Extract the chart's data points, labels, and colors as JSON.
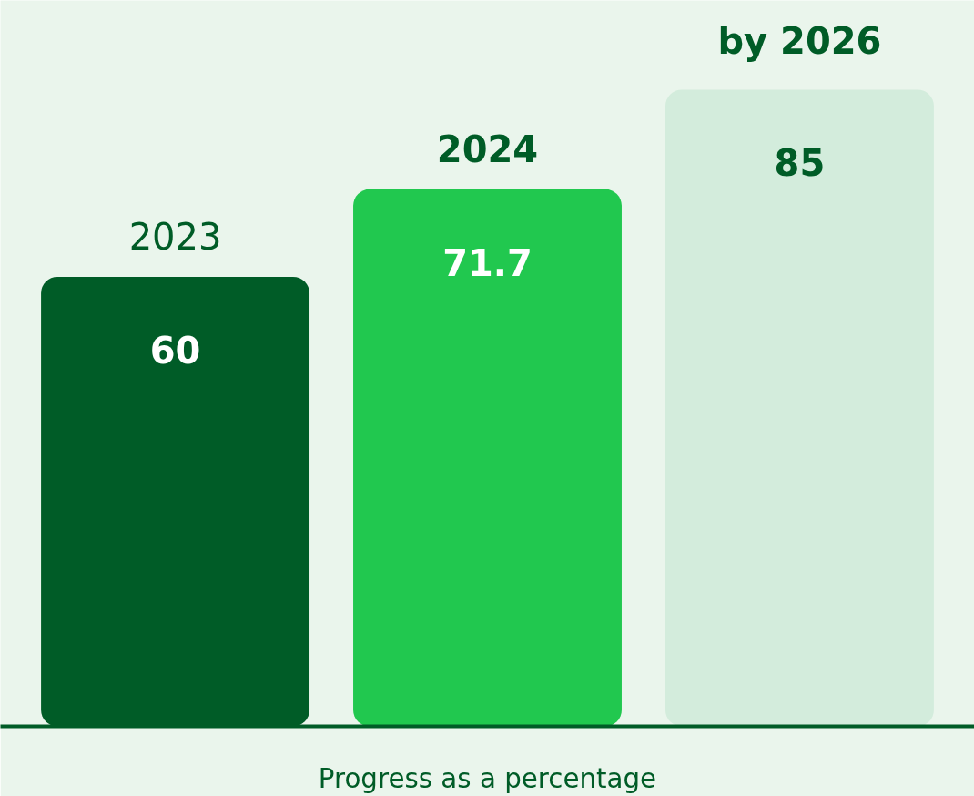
{
  "chart_data": {
    "type": "bar",
    "xlabel": "Progress as a percentage",
    "categories": [
      "2023",
      "2024",
      "by 2026"
    ],
    "values": [
      60,
      71.7,
      85
    ],
    "colors": [
      "#005c27",
      "#21c84f",
      "#d3ecdc"
    ],
    "data_labels": true,
    "grid": false,
    "tick_labels": false
  }
}
